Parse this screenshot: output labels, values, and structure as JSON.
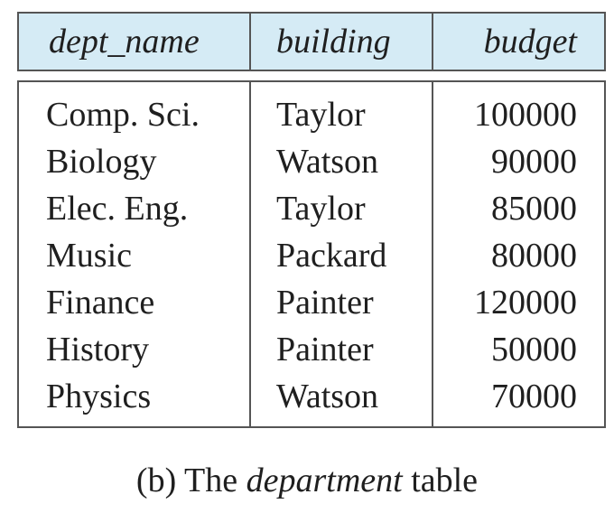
{
  "table": {
    "columns": [
      "dept_name",
      "building",
      "budget"
    ],
    "rows": [
      [
        "Comp. Sci.",
        "Taylor",
        "100000"
      ],
      [
        "Biology",
        "Watson",
        "90000"
      ],
      [
        "Elec. Eng.",
        "Taylor",
        "85000"
      ],
      [
        "Music",
        "Packard",
        "80000"
      ],
      [
        "Finance",
        "Painter",
        "120000"
      ],
      [
        "History",
        "Painter",
        "50000"
      ],
      [
        "Physics",
        "Watson",
        "70000"
      ]
    ],
    "header_bg": "#d5ebf5",
    "border_color": "#555555"
  },
  "caption": {
    "prefix": "(b) The ",
    "emphasis": "department",
    "suffix": " table"
  }
}
